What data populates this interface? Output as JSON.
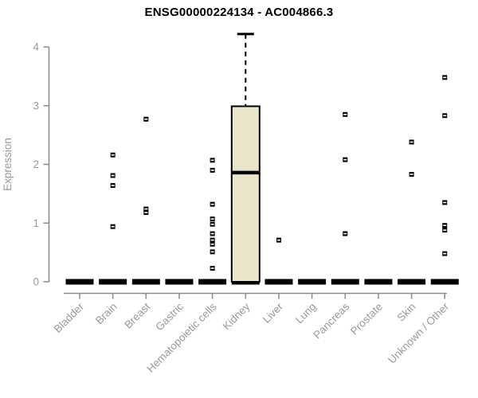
{
  "chart_data": {
    "type": "boxplot",
    "title": "ENSG00000224134 - AC004866.3",
    "ylabel": "Expression",
    "ylim": [
      0,
      4
    ],
    "yticks": [
      "0",
      "1",
      "2",
      "3",
      "4"
    ],
    "grid": false,
    "legend": "none",
    "categories": [
      "Bladder",
      "Brain",
      "Breast",
      "Gastric",
      "Hematopoietic cells",
      "Kidney",
      "Liver",
      "Lung",
      "Pancreas",
      "Prostate",
      "Skin",
      "Unknown / Other"
    ],
    "series": [
      {
        "category": "Bladder",
        "median": 0,
        "q1": 0,
        "q3": 0,
        "whisker_low": 0,
        "whisker_high": 0,
        "outliers": []
      },
      {
        "category": "Brain",
        "median": 0,
        "q1": 0,
        "q3": 0,
        "whisker_low": 0,
        "whisker_high": 0,
        "outliers": [
          2.16,
          1.81,
          1.64,
          0.94
        ]
      },
      {
        "category": "Breast",
        "median": 0,
        "q1": 0,
        "q3": 0,
        "whisker_low": 0,
        "whisker_high": 0,
        "outliers": [
          2.77,
          1.24,
          1.18
        ]
      },
      {
        "category": "Gastric",
        "median": 0,
        "q1": 0,
        "q3": 0,
        "whisker_low": 0,
        "whisker_high": 0,
        "outliers": []
      },
      {
        "category": "Hematopoietic cells",
        "median": 0,
        "q1": 0,
        "q3": 0,
        "whisker_low": 0,
        "whisker_high": 0,
        "outliers": [
          2.07,
          1.9,
          1.32,
          1.07,
          0.98,
          0.82,
          0.71,
          0.64,
          0.51,
          0.23
        ]
      },
      {
        "category": "Kidney",
        "median": 1.86,
        "q1": 0,
        "q3": 2.99,
        "whisker_low": 0,
        "whisker_high": 4.22,
        "outliers": []
      },
      {
        "category": "Liver",
        "median": 0,
        "q1": 0,
        "q3": 0,
        "whisker_low": 0,
        "whisker_high": 0,
        "outliers": [
          0.71
        ]
      },
      {
        "category": "Lung",
        "median": 0,
        "q1": 0,
        "q3": 0,
        "whisker_low": 0,
        "whisker_high": 0,
        "outliers": []
      },
      {
        "category": "Pancreas",
        "median": 0,
        "q1": 0,
        "q3": 0,
        "whisker_low": 0,
        "whisker_high": 0,
        "outliers": [
          2.85,
          2.08,
          0.82
        ]
      },
      {
        "category": "Prostate",
        "median": 0,
        "q1": 0,
        "q3": 0,
        "whisker_low": 0,
        "whisker_high": 0,
        "outliers": []
      },
      {
        "category": "Skin",
        "median": 0,
        "q1": 0,
        "q3": 0,
        "whisker_low": 0,
        "whisker_high": 0,
        "outliers": [
          2.38,
          1.83
        ]
      },
      {
        "category": "Unknown / Other",
        "median": 0,
        "q1": 0,
        "q3": 0,
        "whisker_low": 0,
        "whisker_high": 0,
        "outliers": [
          3.48,
          2.83,
          1.35,
          0.96,
          0.88,
          0.48
        ]
      }
    ],
    "colors": {
      "box_fill": "#ebe5c9",
      "box_border": "#000000",
      "marker": "#000000",
      "axis": "#8b8b8b",
      "tick_text": "#979ba0",
      "title_text": "#000000",
      "background": "#ffffff"
    }
  }
}
